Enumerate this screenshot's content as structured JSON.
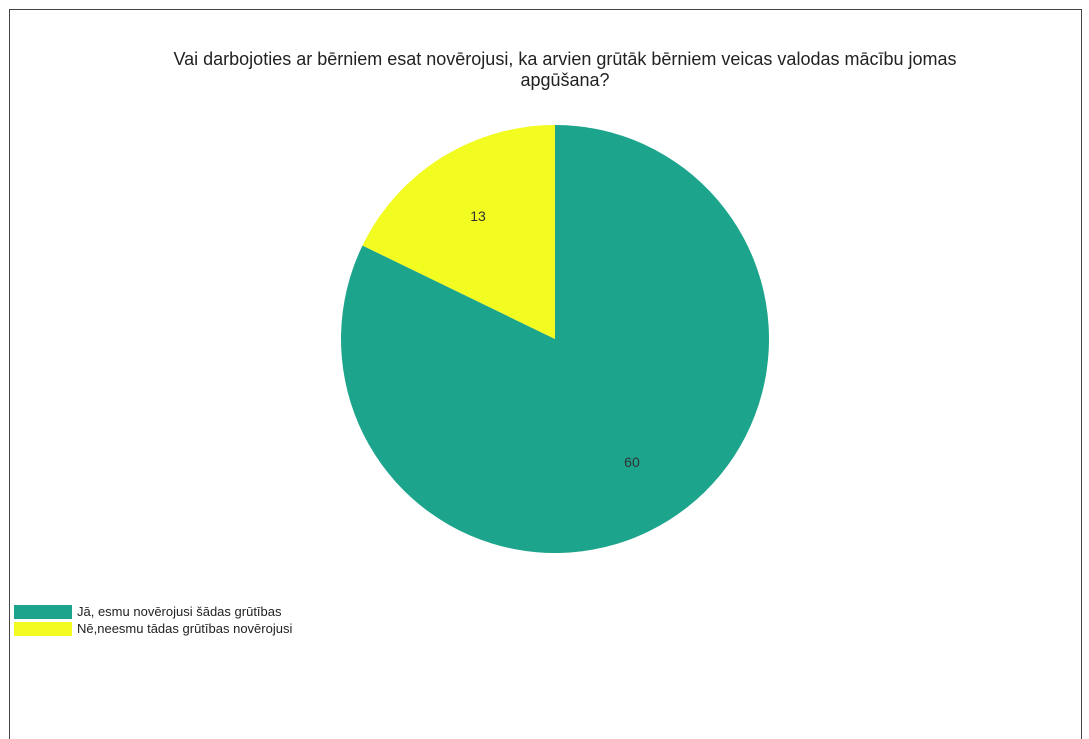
{
  "chart_data": {
    "type": "pie",
    "title_lines": [
      "Vai darbojoties ar bērniem esat novērojusi, ka arvien grūtāk bērniem veicas valodas mācību jomas",
      "apgūšana?"
    ],
    "slices": [
      {
        "name": "Jā, esmu novērojusi šādas grūtības",
        "value": 60,
        "label": "60",
        "color": "#1ca48c"
      },
      {
        "name": "Nē,neesmu tādas grūtības novērojusi",
        "value": 13,
        "label": "13",
        "color": "#f2fc20"
      }
    ],
    "legend_position": "bottom-left",
    "start_angle": "12 o'clock",
    "direction": "clockwise"
  }
}
